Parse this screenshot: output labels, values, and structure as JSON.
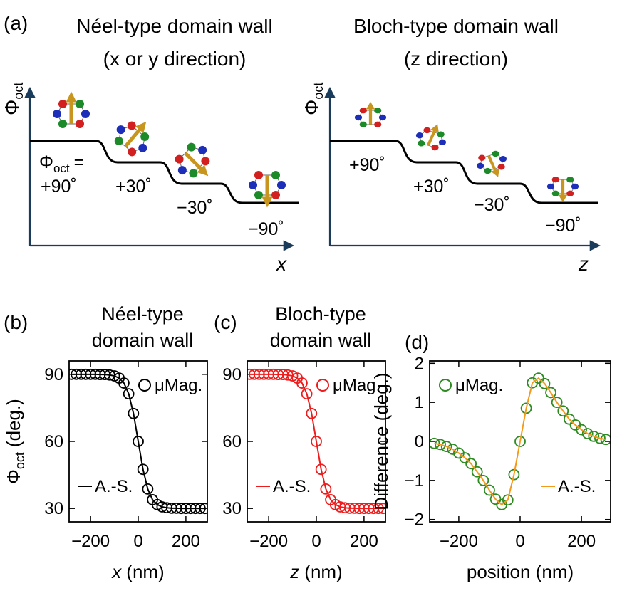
{
  "diagram": {
    "panel": "(a)",
    "neel_title": "Néel-type domain wall",
    "neel_subtitle": "(x or y direction)",
    "bloch_title": "Bloch-type domain wall",
    "bloch_subtitle": "(z direction)",
    "axis_symbol": "Φ",
    "axis_subscript": "oct",
    "equals": "=",
    "neel_steps": [
      "+90˚",
      "+30˚",
      "−30˚",
      "−90˚"
    ],
    "bloch_steps": [
      "+90˚",
      "+30˚",
      "−30˚",
      "−90˚"
    ],
    "neel_axis": "x",
    "bloch_axis": "z"
  },
  "chart_data": [
    {
      "type": "line",
      "label": "(b)",
      "title": [
        "Néel-type",
        "domain wall"
      ],
      "xlabel": {
        "var": "x",
        "unit": "(nm)"
      },
      "ylabel": {
        "symbol": "Φ",
        "subscript": "oct",
        "unit": "(deg.)"
      },
      "x": [
        -280,
        -260,
        -240,
        -220,
        -200,
        -180,
        -160,
        -140,
        -120,
        -100,
        -80,
        -60,
        -40,
        -20,
        0,
        20,
        40,
        60,
        80,
        100,
        120,
        140,
        160,
        180,
        200,
        220,
        240,
        260,
        280
      ],
      "series": [
        {
          "name": "μMag.",
          "color": "#000000",
          "marker": "circle",
          "legend": "upper right",
          "values": [
            90,
            90,
            90,
            90,
            90,
            90,
            89.9,
            89.9,
            89.7,
            89.3,
            88.3,
            86.1,
            81.3,
            72.5,
            60,
            47.5,
            38.7,
            33.9,
            31.7,
            30.7,
            30.3,
            30.1,
            30.1,
            30,
            30,
            30,
            30,
            30,
            30
          ]
        },
        {
          "name": "A.-S.",
          "color": "#000000",
          "marker": "none",
          "legend": "lower left",
          "values": [
            90,
            90,
            90,
            90,
            90,
            90,
            89.9,
            89.9,
            89.7,
            89.3,
            88.3,
            86.1,
            81.3,
            72.5,
            60,
            47.5,
            38.7,
            33.9,
            31.7,
            30.7,
            30.3,
            30.1,
            30.1,
            30,
            30,
            30,
            30,
            30,
            30
          ]
        }
      ],
      "xlim": [
        -290,
        290
      ],
      "ylim": [
        24,
        96
      ],
      "xticks": [
        {
          "value": -200,
          "label": "−200"
        },
        0,
        200
      ],
      "yticks": [
        30,
        60,
        90
      ]
    },
    {
      "type": "line",
      "label": "(c)",
      "title": [
        "Bloch-type",
        "domain wall"
      ],
      "xlabel": {
        "var": "z",
        "unit": "(nm)"
      },
      "x": [
        -280,
        -260,
        -240,
        -220,
        -200,
        -180,
        -160,
        -140,
        -120,
        -100,
        -80,
        -60,
        -40,
        -20,
        0,
        20,
        40,
        60,
        80,
        100,
        120,
        140,
        160,
        180,
        200,
        220,
        240,
        260,
        280
      ],
      "series": [
        {
          "name": "μMag.",
          "color": "#ee1c1c",
          "marker": "circle",
          "legend": "upper right",
          "values": [
            90,
            90,
            90,
            90,
            90,
            90,
            89.9,
            89.9,
            89.7,
            89.3,
            88.3,
            86.1,
            81.3,
            72.5,
            60,
            47.5,
            38.7,
            33.9,
            31.7,
            30.7,
            30.3,
            30.1,
            30.1,
            30,
            30,
            30,
            30,
            30,
            30
          ]
        },
        {
          "name": "A.-S.",
          "color": "#ee1c1c",
          "marker": "none",
          "legend": "lower left",
          "values": [
            90,
            90,
            90,
            90,
            90,
            90,
            89.9,
            89.9,
            89.7,
            89.3,
            88.3,
            86.1,
            81.3,
            72.5,
            60,
            47.5,
            38.7,
            33.9,
            31.7,
            30.7,
            30.3,
            30.1,
            30.1,
            30,
            30,
            30,
            30,
            30,
            30
          ]
        }
      ],
      "xlim": [
        -290,
        290
      ],
      "ylim": [
        24,
        96
      ],
      "xticks": [
        {
          "value": -200,
          "label": "−200"
        },
        0,
        200
      ],
      "yticks": [
        30,
        60,
        90
      ]
    },
    {
      "type": "line",
      "label": "(d)",
      "xlabel": "position (nm)",
      "ylabel": "Difference (deg.)",
      "x": [
        -280,
        -260,
        -240,
        -220,
        -200,
        -180,
        -160,
        -140,
        -120,
        -100,
        -80,
        -60,
        -40,
        -20,
        0,
        20,
        40,
        60,
        80,
        100,
        120,
        140,
        160,
        180,
        200,
        220,
        240,
        260,
        280
      ],
      "series": [
        {
          "name": "μMag.",
          "color": "#2e8b22",
          "marker": "circle",
          "legend": "upper left",
          "values": [
            -0.05,
            -0.08,
            -0.13,
            -0.2,
            -0.3,
            -0.42,
            -0.57,
            -0.78,
            -1.0,
            -1.25,
            -1.48,
            -1.62,
            -1.5,
            -0.85,
            0,
            0.85,
            1.5,
            1.62,
            1.48,
            1.25,
            1.0,
            0.78,
            0.57,
            0.42,
            0.3,
            0.2,
            0.13,
            0.08,
            0.05
          ]
        },
        {
          "name": "A.-S.",
          "color": "#f39a1c",
          "marker": "none",
          "legend": "lower right",
          "values": [
            -0.05,
            -0.08,
            -0.13,
            -0.2,
            -0.3,
            -0.42,
            -0.57,
            -0.78,
            -1.0,
            -1.25,
            -1.48,
            -1.62,
            -1.5,
            -0.85,
            0,
            0.85,
            1.5,
            1.62,
            1.48,
            1.25,
            1.0,
            0.78,
            0.57,
            0.42,
            0.3,
            0.2,
            0.13,
            0.08,
            0.05
          ]
        }
      ],
      "xlim": [
        -295,
        295
      ],
      "ylim": [
        -2.06,
        2.06
      ],
      "xticks": [
        {
          "value": -200,
          "label": "−200"
        },
        0,
        200
      ],
      "yticks": [
        {
          "value": -2,
          "label": "−2"
        },
        {
          "value": -1,
          "label": "−1"
        },
        0,
        1,
        2
      ]
    }
  ]
}
